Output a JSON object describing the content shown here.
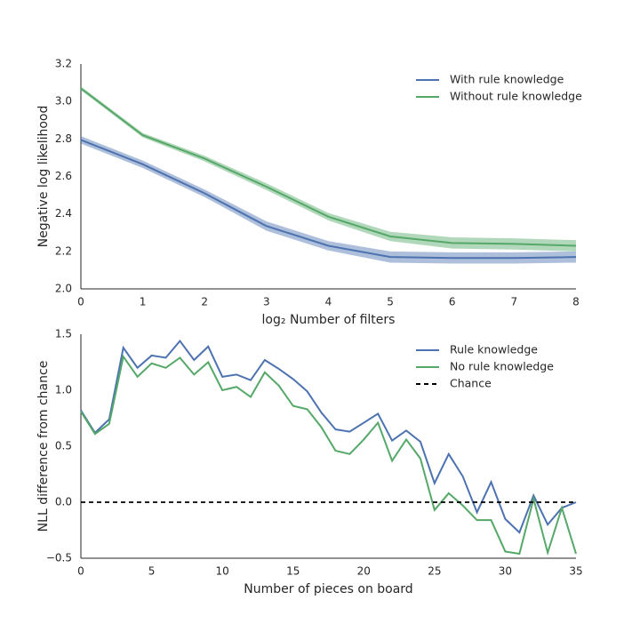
{
  "chart_data": [
    {
      "type": "line",
      "x": [
        0,
        1,
        2,
        3,
        4,
        5,
        6,
        7,
        8
      ],
      "xlabel": "log₂ Number of filters",
      "ylabel": "Negative log likelihood",
      "xlim": [
        0,
        8
      ],
      "xticks": [
        0,
        1,
        2,
        3,
        4,
        5,
        6,
        7,
        8
      ],
      "ylim": [
        2.0,
        3.2
      ],
      "yticks": [
        {
          "value": 2.0,
          "label": "2.0"
        },
        2.2,
        2.4,
        2.6,
        2.8,
        {
          "value": 3.0,
          "label": "3.0"
        },
        3.2
      ],
      "legend": "upper right",
      "series": [
        {
          "name": "With rule knowledge",
          "color": "#4c72b0",
          "values": [
            2.795,
            2.665,
            2.51,
            2.335,
            2.23,
            2.17,
            2.165,
            2.165,
            2.17
          ],
          "errors": [
            0.02,
            0.02,
            0.02,
            0.025,
            0.025,
            0.03,
            0.03,
            0.03,
            0.03
          ]
        },
        {
          "name": "Without rule knowledge",
          "color": "#55a868",
          "values": [
            3.07,
            2.82,
            2.695,
            2.545,
            2.385,
            2.28,
            2.245,
            2.24,
            2.23
          ],
          "errors": [
            0.01,
            0.012,
            0.015,
            0.018,
            0.02,
            0.025,
            0.03,
            0.03,
            0.03
          ]
        }
      ]
    },
    {
      "type": "line",
      "x": [
        0,
        1,
        2,
        3,
        4,
        5,
        6,
        7,
        8,
        9,
        10,
        11,
        12,
        13,
        14,
        15,
        16,
        17,
        18,
        19,
        20,
        21,
        22,
        23,
        24,
        25,
        26,
        27,
        28,
        29,
        30,
        31,
        32,
        33,
        34,
        35
      ],
      "xlabel": "Number of pieces on board",
      "ylabel": "NLL difference from chance",
      "xlim": [
        0,
        35
      ],
      "xticks": [
        0,
        5,
        10,
        15,
        20,
        25,
        30,
        35
      ],
      "ylim": [
        -0.5,
        1.5
      ],
      "yticks": [
        {
          "value": -0.5,
          "label": "−0.5"
        },
        {
          "value": 0.0,
          "label": "0.0"
        },
        0.5,
        {
          "value": 1.0,
          "label": "1.0"
        },
        1.5
      ],
      "legend": "upper right",
      "series": [
        {
          "name": "Rule knowledge",
          "color": "#4c72b0",
          "values": [
            0.82,
            0.62,
            0.74,
            1.38,
            1.2,
            1.31,
            1.29,
            1.44,
            1.27,
            1.39,
            1.12,
            1.14,
            1.09,
            1.27,
            1.19,
            1.1,
            0.99,
            0.8,
            0.65,
            0.63,
            0.71,
            0.79,
            0.55,
            0.64,
            0.54,
            0.17,
            0.43,
            0.23,
            -0.09,
            0.18,
            -0.15,
            -0.27,
            0.06,
            -0.2,
            -0.05,
            0.0
          ]
        },
        {
          "name": "No rule knowledge",
          "color": "#55a868",
          "values": [
            0.81,
            0.61,
            0.7,
            1.3,
            1.12,
            1.24,
            1.2,
            1.29,
            1.14,
            1.25,
            1.0,
            1.03,
            0.94,
            1.16,
            1.04,
            0.86,
            0.83,
            0.67,
            0.46,
            0.43,
            0.56,
            0.71,
            0.37,
            0.56,
            0.39,
            -0.07,
            0.08,
            -0.03,
            -0.16,
            -0.16,
            -0.44,
            -0.46,
            0.03,
            -0.45,
            -0.05,
            -0.46
          ]
        },
        {
          "name": "Chance",
          "color": "#000000",
          "dashed": true,
          "x": [
            0,
            35
          ],
          "values": [
            0,
            0
          ]
        }
      ]
    }
  ]
}
